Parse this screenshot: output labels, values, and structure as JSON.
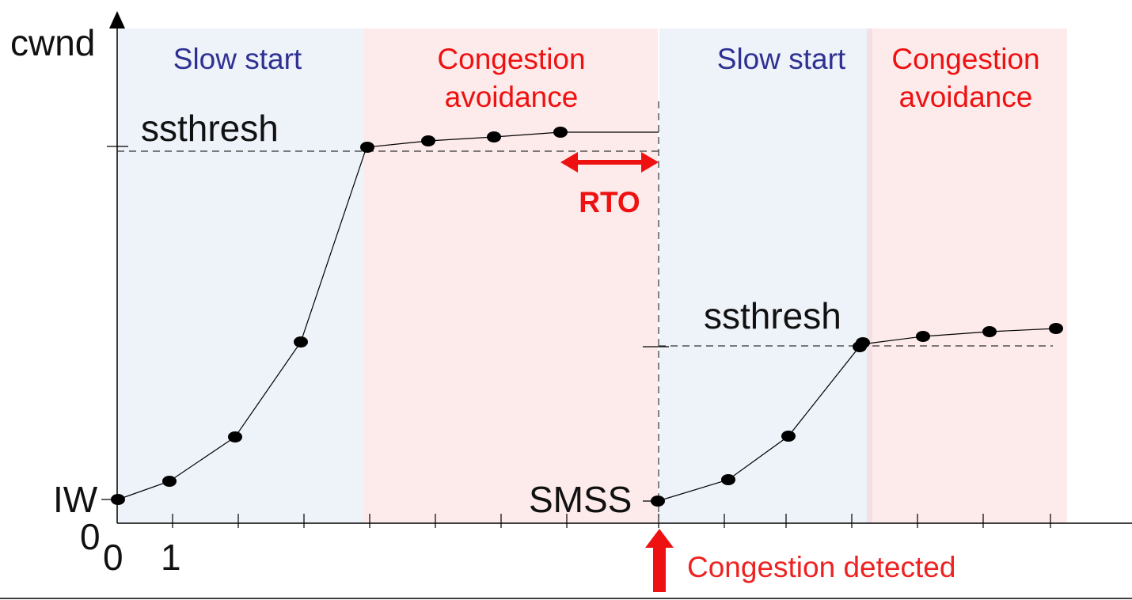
{
  "axis": {
    "y_label": "cwnd",
    "origin_y": "0",
    "origin_x": "0",
    "x_tick_one": "1"
  },
  "phases": [
    {
      "label": "Slow start",
      "kind": "slow-start"
    },
    {
      "label_line1": "Congestion",
      "label_line2": "avoidance",
      "kind": "congestion-avoidance"
    },
    {
      "label": "Slow start",
      "kind": "slow-start"
    },
    {
      "label_line1": "Congestion",
      "label_line2": "avoidance",
      "kind": "congestion-avoidance"
    }
  ],
  "labels": {
    "ssthresh_first": "ssthresh",
    "ssthresh_second": "ssthresh",
    "iw": "IW",
    "smss": "SMSS",
    "rto": "RTO",
    "congestion_detected": "Congestion detected"
  },
  "colors": {
    "slow_start_bg": "#eef2f9",
    "congestion_avoidance_bg": "#fdeaea",
    "slow_start_text": "#2e3192",
    "congestion_text": "#ee1111",
    "arrow": "#ee1111"
  }
}
